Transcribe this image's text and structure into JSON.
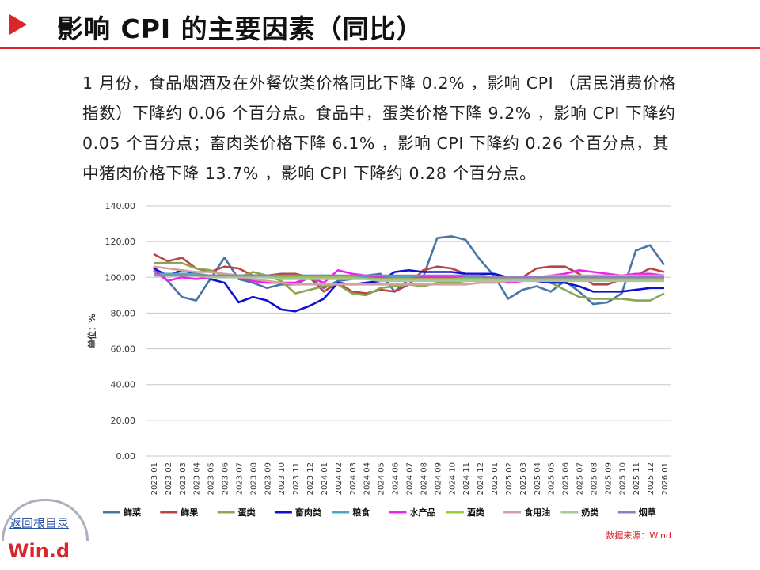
{
  "header": {
    "title": "影响 CPI 的主要因素（同比）"
  },
  "body_text": "1 月份，食品烟酒及在外餐饮类价格同比下降 0.2% ，影响 CPI （居民消费价格指数）下降约 0.06 个百分点。食品中，蛋类价格下降 9.2% ，影响 CPI 下降约 0.05 个百分点；畜肉类价格下降 6.1% ，影响 CPI 下降约 0.26 个百分点，其中猪肉价格下降 13.7% ，影响 CPI 下降约 0.28 个百分点。",
  "footer": {
    "back_link": "返回根目录",
    "logo": "Win.d"
  },
  "colors": {
    "accent": "#d9262b",
    "link": "#2a54a6"
  },
  "chart_data": {
    "type": "line",
    "title": "",
    "xlabel": "",
    "ylabel": "单位：%",
    "ylim": [
      0,
      140
    ],
    "yticks": [
      "0.00",
      "20.00",
      "40.00",
      "60.00",
      "80.00",
      "100.00",
      "120.00",
      "140.00"
    ],
    "grid": true,
    "legend_position": "bottom",
    "source": "数据来源：Wind",
    "categories": [
      "2023 01",
      "2023 02",
      "2023 03",
      "2023 04",
      "2023 05",
      "2023 06",
      "2023 07",
      "2023 08",
      "2023 09",
      "2023 10",
      "2023 11",
      "2023 12",
      "2024 01",
      "2024 02",
      "2024 03",
      "2024 04",
      "2024 05",
      "2024 06",
      "2024 07",
      "2024 08",
      "2024 09",
      "2024 10",
      "2024 11",
      "2024 12",
      "2025 01",
      "2025 02",
      "2025 03",
      "2025 04",
      "2025 05",
      "2025 06",
      "2025 07",
      "2025 08",
      "2025 09",
      "2025 10",
      "2025 11",
      "2025 12",
      "2026 01"
    ],
    "series": [
      {
        "name": "鲜菜",
        "color": "#4a74a8",
        "values": [
          106,
          98,
          89,
          87,
          99,
          111,
          99,
          97,
          94,
          96,
          96,
          100,
          94,
          98,
          99,
          101,
          102,
          92,
          99,
          100,
          122,
          123,
          121,
          110,
          101,
          88,
          93,
          95,
          92,
          98,
          92,
          85,
          86,
          91,
          115,
          118,
          107
        ]
      },
      {
        "name": "鲜果",
        "color": "#b84545",
        "values": [
          113,
          109,
          111,
          105,
          103,
          106,
          105,
          101,
          101,
          102,
          102,
          100,
          92,
          97,
          92,
          91,
          93,
          92,
          96,
          104,
          106,
          105,
          102,
          101,
          100,
          99,
          100,
          105,
          106,
          106,
          102,
          96,
          96,
          99,
          101,
          105,
          103
        ]
      },
      {
        "name": "蛋类",
        "color": "#8ca550",
        "values": [
          108,
          108,
          108,
          105,
          104,
          101,
          100,
          103,
          101,
          98,
          91,
          93,
          95,
          96,
          91,
          90,
          94,
          95,
          96,
          95,
          97,
          97,
          98,
          99,
          100,
          99,
          99,
          98,
          97,
          93,
          89,
          88,
          88,
          88,
          87,
          87,
          91
        ]
      },
      {
        "name": "畜肉类",
        "color": "#1010d0",
        "values": [
          105,
          101,
          104,
          102,
          99,
          97,
          86,
          89,
          87,
          82,
          81,
          84,
          88,
          97,
          96,
          97,
          98,
          103,
          104,
          103,
          103,
          103,
          102,
          102,
          102,
          100,
          99,
          98,
          97,
          97,
          95,
          92,
          92,
          92,
          93,
          94,
          94
        ]
      },
      {
        "name": "粮食",
        "color": "#4aa5be",
        "values": [
          102,
          102,
          102,
          102,
          101,
          101,
          101,
          101,
          101,
          101,
          101,
          101,
          101,
          101,
          100,
          100,
          100,
          100,
          100,
          100,
          100,
          100,
          100,
          100,
          100,
          99,
          99,
          99,
          99,
          99,
          99,
          99,
          99,
          99,
          99,
          99,
          99
        ]
      },
      {
        "name": "水产品",
        "color": "#f020f0",
        "values": [
          104,
          98,
          100,
          99,
          100,
          101,
          100,
          98,
          97,
          97,
          97,
          100,
          97,
          104,
          102,
          101,
          100,
          99,
          99,
          100,
          100,
          100,
          101,
          101,
          99,
          97,
          98,
          99,
          101,
          102,
          104,
          103,
          102,
          101,
          102,
          102,
          101
        ]
      },
      {
        "name": "酒类",
        "color": "#9acd32",
        "values": [
          101,
          101,
          101,
          101,
          101,
          101,
          101,
          101,
          100,
          100,
          100,
          100,
          100,
          100,
          100,
          99,
          99,
          99,
          99,
          99,
          99,
          99,
          99,
          99,
          99,
          99,
          99,
          99,
          99,
          99,
          99,
          99,
          99,
          99,
          99,
          99,
          99
        ]
      },
      {
        "name": "食用油",
        "color": "#d4a0a0",
        "values": [
          106,
          105,
          104,
          103,
          103,
          102,
          101,
          99,
          98,
          97,
          96,
          96,
          96,
          96,
          96,
          96,
          96,
          96,
          96,
          96,
          96,
          96,
          96,
          97,
          97,
          98,
          99,
          100,
          101,
          101,
          101,
          101,
          101,
          101,
          101,
          101,
          101
        ]
      },
      {
        "name": "奶类",
        "color": "#a8c898",
        "values": [
          101,
          101,
          101,
          101,
          100,
          100,
          100,
          100,
          100,
          99,
          99,
          99,
          99,
          99,
          99,
          99,
          98,
          98,
          98,
          98,
          98,
          98,
          98,
          98,
          98,
          98,
          98,
          98,
          98,
          98,
          98,
          98,
          98,
          98,
          98,
          98,
          98
        ]
      },
      {
        "name": "烟草",
        "color": "#9080c0",
        "values": [
          101,
          101,
          101,
          101,
          101,
          101,
          101,
          101,
          101,
          101,
          101,
          101,
          101,
          101,
          101,
          101,
          101,
          101,
          101,
          101,
          101,
          101,
          101,
          101,
          100,
          100,
          100,
          100,
          100,
          100,
          100,
          100,
          100,
          100,
          100,
          100,
          100
        ]
      }
    ]
  }
}
